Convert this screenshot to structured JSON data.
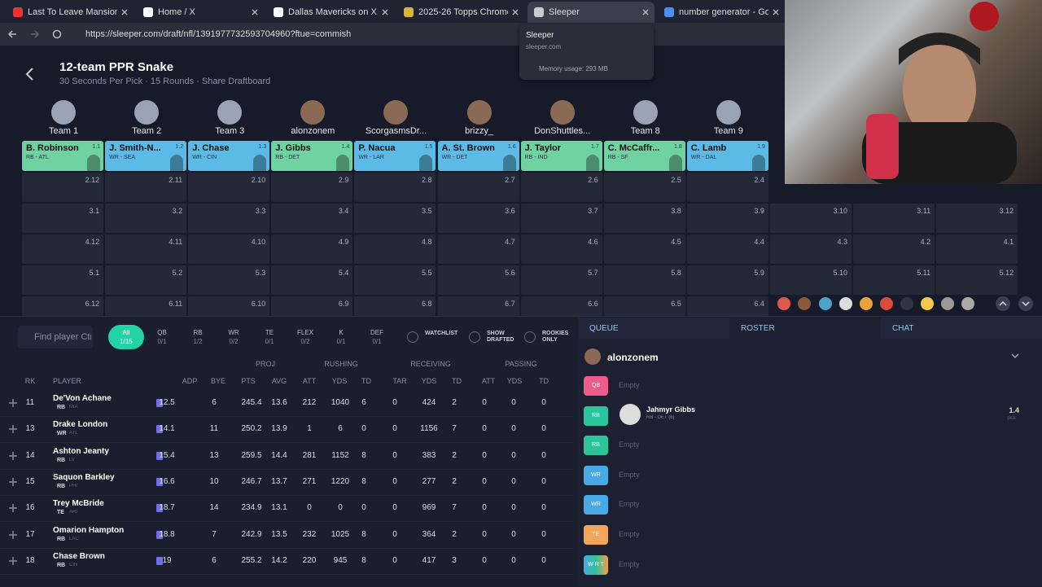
{
  "browser": {
    "tabs": [
      "Last To Leave Mansion, Keeps I",
      "Home / X",
      "Dallas Mavericks on X: \"WANTE",
      "2025-26 Topps Chrome Update",
      "Sleeper",
      "number generator - Google Se"
    ],
    "url": "https://sleeper.com/draft/nfl/1391977732593704960?ftue=commish"
  },
  "tooltip": {
    "title": "Sleeper",
    "domain": "sleeper.com",
    "memory": "Memory usage: 293 MB"
  },
  "draft": {
    "title": "12-team PPR Snake",
    "subtitle": "30 Seconds Per Pick · 15 Rounds · Share Draftboard"
  },
  "teams": [
    "Team 1",
    "Team 2",
    "Team 3",
    "alonzonem",
    "ScorgasmsDr...",
    "brizzy_",
    "DonShuttles...",
    "Team 8",
    "Team 9"
  ],
  "picks": [
    {
      "name": "B. Robinson",
      "pos": "RB - ATL",
      "pick": "1.1"
    },
    {
      "name": "J. Smith-N...",
      "pos": "WR - SEA",
      "pick": "1.2"
    },
    {
      "name": "J. Chase",
      "pos": "WR - CIN",
      "pick": "1.3"
    },
    {
      "name": "J. Gibbs",
      "pos": "RB - DET",
      "pick": "1.4"
    },
    {
      "name": "P. Nacua",
      "pos": "WR - LAR",
      "pick": "1.5"
    },
    {
      "name": "A. St. Brown",
      "pos": "WR - DET",
      "pick": "1.6"
    },
    {
      "name": "J. Taylor",
      "pos": "RB - IND",
      "pick": "1.7"
    },
    {
      "name": "C. McCaffr...",
      "pos": "RB - SF",
      "pick": "1.8"
    },
    {
      "name": "C. Lamb",
      "pos": "WR - DAL",
      "pick": "1.9"
    }
  ],
  "board_rows": [
    [
      "2.12",
      "2.11",
      "2.10",
      "2.9",
      "2.8",
      "2.7",
      "2.6",
      "2.5",
      "2.4"
    ],
    [
      "3.1",
      "3.2",
      "3.3",
      "3.4",
      "3.5",
      "3.6",
      "3.7",
      "3.8",
      "3.9",
      "3.10",
      "3.11",
      "3.12"
    ],
    [
      "4.12",
      "4.11",
      "4.10",
      "4.9",
      "4.8",
      "4.7",
      "4.6",
      "4.5",
      "4.4",
      "4.3",
      "4.2",
      "4.1"
    ],
    [
      "5.1",
      "5.2",
      "5.3",
      "5.4",
      "5.5",
      "5.6",
      "5.7",
      "5.8",
      "5.9",
      "5.10",
      "5.11",
      "5.12"
    ],
    [
      "6.12",
      "6.11",
      "6.10",
      "6.9",
      "6.8",
      "6.7",
      "6.6",
      "6.5",
      "6.4"
    ]
  ],
  "filters": {
    "search": "Find player Ctr",
    "positions": [
      {
        "label": "All",
        "count": "1/15"
      },
      {
        "label": "QB",
        "count": "0/1"
      },
      {
        "label": "RB",
        "count": "1/2"
      },
      {
        "label": "WR",
        "count": "0/2"
      },
      {
        "label": "TE",
        "count": "0/1"
      },
      {
        "label": "FLEX",
        "count": "0/2"
      },
      {
        "label": "K",
        "count": "0/1"
      },
      {
        "label": "DEF",
        "count": "0/1"
      }
    ],
    "toggles": [
      "WATCHLIST",
      "SHOW DRAFTED",
      "ROOKIES ONLY"
    ]
  },
  "table": {
    "groups": [
      "PROJ",
      "RUSHING",
      "RECEIVING",
      "PASSING"
    ],
    "columns": [
      "RK",
      "PLAYER",
      "ADP",
      "BYE",
      "PTS",
      "AVG",
      "ATT",
      "YDS",
      "TD",
      "TAR",
      "YDS",
      "TD",
      "ATT",
      "YDS",
      "TD"
    ],
    "rows": [
      {
        "rank": "11",
        "name": "De'Von Achane",
        "pos": "RB",
        "team": "MIA",
        "cells": [
          "12.5",
          "6",
          "245.4",
          "13.6",
          "212",
          "1040",
          "6",
          "0",
          "424",
          "2",
          "0",
          "0",
          "0"
        ]
      },
      {
        "rank": "13",
        "name": "Drake London",
        "pos": "WR",
        "team": "ATL",
        "cells": [
          "14.1",
          "11",
          "250.2",
          "13.9",
          "1",
          "6",
          "0",
          "0",
          "1156",
          "7",
          "0",
          "0",
          "0"
        ]
      },
      {
        "rank": "14",
        "name": "Ashton Jeanty",
        "pos": "RB",
        "team": "LV",
        "cells": [
          "15.4",
          "13",
          "259.5",
          "14.4",
          "281",
          "1152",
          "8",
          "0",
          "383",
          "2",
          "0",
          "0",
          "0"
        ]
      },
      {
        "rank": "15",
        "name": "Saquon Barkley",
        "pos": "RB",
        "team": "PHI",
        "cells": [
          "16.6",
          "10",
          "246.7",
          "13.7",
          "271",
          "1220",
          "8",
          "0",
          "277",
          "2",
          "0",
          "0",
          "0"
        ]
      },
      {
        "rank": "16",
        "name": "Trey McBride",
        "pos": "TE",
        "team": "ARI",
        "cells": [
          "18.7",
          "14",
          "234.9",
          "13.1",
          "0",
          "0",
          "0",
          "0",
          "969",
          "7",
          "0",
          "0",
          "0"
        ]
      },
      {
        "rank": "17",
        "name": "Omarion Hampton",
        "pos": "RB",
        "team": "LAC",
        "cells": [
          "18.8",
          "7",
          "242.9",
          "13.5",
          "232",
          "1025",
          "8",
          "0",
          "364",
          "2",
          "0",
          "0",
          "0"
        ]
      },
      {
        "rank": "18",
        "name": "Chase Brown",
        "pos": "RB",
        "team": "CIN",
        "cells": [
          "19",
          "6",
          "255.2",
          "14.2",
          "220",
          "945",
          "8",
          "0",
          "417",
          "3",
          "0",
          "0",
          "0"
        ]
      }
    ]
  },
  "roster": {
    "tabs": [
      "QUEUE",
      "ROSTER",
      "CHAT"
    ],
    "user": "alonzonem",
    "slots": [
      {
        "pos": "QB",
        "text": "Empty"
      },
      {
        "pos": "RB",
        "player": "Jahmyr Gibbs",
        "detail": "RB - DET (6)",
        "pick": "1.4",
        "pick_label": "pick"
      },
      {
        "pos": "RB",
        "text": "Empty"
      },
      {
        "pos": "WR",
        "text": "Empty"
      },
      {
        "pos": "WR",
        "text": "Empty"
      },
      {
        "pos": "TE",
        "text": "Empty"
      },
      {
        "pos": "W R T",
        "text": "Empty"
      }
    ]
  }
}
